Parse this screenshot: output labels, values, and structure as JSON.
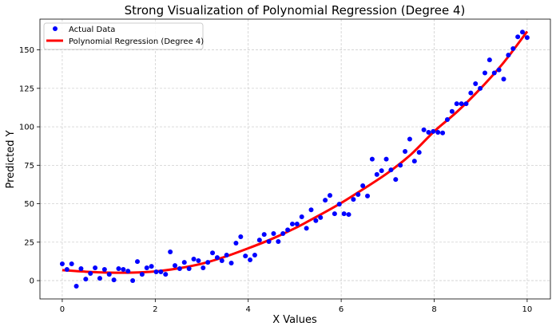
{
  "chart_data": {
    "type": "scatter",
    "title": "Strong Visualization of Polynomial Regression (Degree 4)",
    "xlabel": "X Values",
    "ylabel": "Predicted Y",
    "xlim": [
      -0.48,
      10.5
    ],
    "ylim": [
      -11.9,
      170
    ],
    "xticks": [
      0,
      2,
      4,
      6,
      8,
      10
    ],
    "xtick_labels": [
      "0",
      "2",
      "4",
      "6",
      "8",
      "10"
    ],
    "yticks": [
      0,
      25,
      50,
      75,
      100,
      125,
      150
    ],
    "ytick_labels": [
      "0",
      "25",
      "50",
      "75",
      "100",
      "125",
      "150"
    ],
    "grid": true,
    "legend": {
      "position": "top-left",
      "entries": [
        "Actual Data",
        "Polynomial Regression (Degree 4)"
      ]
    },
    "series": [
      {
        "name": "Actual Data",
        "type": "scatter",
        "color": "#0000ff",
        "x_range": [
          0,
          10
        ],
        "count": 100,
        "y": [
          10.9,
          7.3,
          10.9,
          -3.6,
          7.8,
          1,
          4.7,
          8.3,
          1.5,
          7.3,
          4.1,
          0.5,
          7.8,
          7.3,
          6.2,
          0,
          12.4,
          4.1,
          8.3,
          9.3,
          5.7,
          5.7,
          4.1,
          18.7,
          9.8,
          7.8,
          11.9,
          7.8,
          14,
          13,
          8.3,
          11.9,
          18,
          15,
          13,
          16.6,
          11.4,
          24.4,
          28.5,
          16,
          13.5,
          16.6,
          26.4,
          30,
          25.4,
          30.6,
          25.4,
          30.6,
          33,
          36.8,
          36.8,
          41.5,
          34,
          46,
          39,
          41,
          52.3,
          55.4,
          43.5,
          49.7,
          43.5,
          43,
          52.8,
          56,
          61.7,
          55,
          79,
          69,
          71.5,
          79,
          72,
          65.8,
          75,
          84,
          92,
          77.7,
          83.4,
          98,
          96.4,
          97,
          96.4,
          96,
          104.7,
          110,
          115,
          115,
          115,
          122,
          128,
          125,
          135,
          143.5,
          135,
          137,
          131,
          146.6,
          150.8,
          158.5,
          161.6,
          158
        ]
      },
      {
        "name": "Polynomial Regression (Degree 4)",
        "type": "line",
        "color": "#ff0000",
        "x": [
          0,
          0.5,
          1,
          1.5,
          2,
          2.5,
          3,
          3.5,
          4,
          4.5,
          5,
          5.5,
          6,
          6.5,
          7,
          7.5,
          8,
          8.5,
          9,
          9.5,
          10
        ],
        "y": [
          6.8,
          5.8,
          5.2,
          5.2,
          6,
          8,
          11,
          15.5,
          21,
          27,
          34,
          42,
          50.5,
          60,
          70,
          82,
          97,
          110,
          125,
          142,
          162
        ]
      }
    ]
  }
}
